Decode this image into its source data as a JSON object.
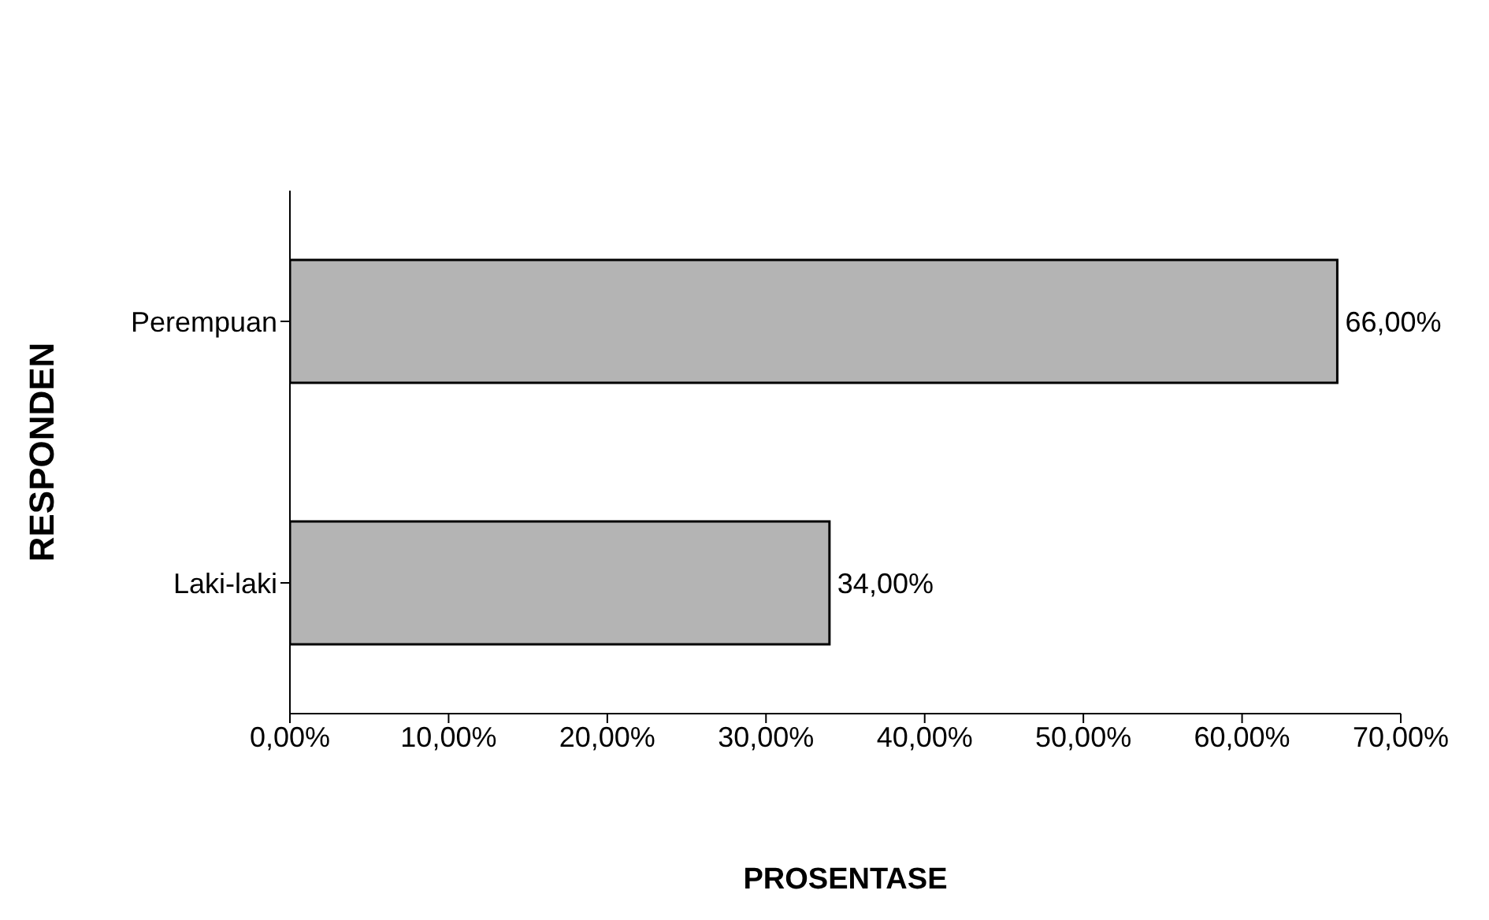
{
  "chart_data": {
    "type": "bar",
    "orientation": "horizontal",
    "categories": [
      "Perempuan",
      "Laki-laki"
    ],
    "values": [
      66,
      34
    ],
    "color": "#b4b4b4",
    "value_labels": [
      "66,00%",
      "34,00%"
    ],
    "xlim": [
      0,
      70
    ],
    "xticks": [
      {
        "value": 0,
        "label": "0,00%"
      },
      {
        "value": 10,
        "label": "10,00%"
      },
      {
        "value": 20,
        "label": "20,00%"
      },
      {
        "value": 30,
        "label": "30,00%"
      },
      {
        "value": 40,
        "label": "40,00%"
      },
      {
        "value": 50,
        "label": "50,00%"
      },
      {
        "value": 60,
        "label": "60,00%"
      },
      {
        "value": 70,
        "label": "70,00%"
      }
    ],
    "xlabel": "PROSENTASE",
    "ylabel": "RESPONDEN",
    "grid": false
  }
}
